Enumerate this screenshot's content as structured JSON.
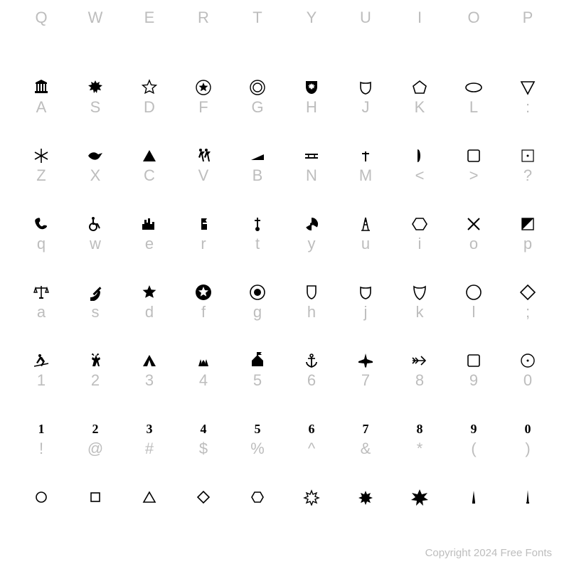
{
  "copyright": "Copyright 2024 Free Fonts",
  "colors": {
    "label": "#bdbdbd",
    "glyph": "#000000",
    "background": "#ffffff"
  },
  "fontsize": {
    "label": 22,
    "glyph": 22,
    "copyright": 15
  },
  "rows": [
    {
      "top_labels": [
        "Q",
        "W",
        "E",
        "R",
        "T",
        "Y",
        "U",
        "I",
        "O",
        "P"
      ],
      "glyph_row": null,
      "bottom_labels": null
    },
    {
      "top_labels": null,
      "glyphs": [
        "building",
        "maple-leaf",
        "star-outline",
        "star-circle",
        "double-circle",
        "shield-leaf",
        "badge",
        "pentagon",
        "ellipse",
        "triangle-down"
      ],
      "bottom_labels": [
        "A",
        "S",
        "D",
        "F",
        "G",
        "H",
        "J",
        "K",
        "L",
        ":"
      ]
    },
    {
      "top_labels": null,
      "glyphs": [
        "snowflake",
        "bird",
        "triangle-up-solid",
        "walkers",
        "wedge",
        "biplane",
        "tower-cross",
        "bracket-right",
        "square-outline",
        "square-dot"
      ],
      "bottom_labels": [
        "Z",
        "X",
        "C",
        "V",
        "B",
        "N",
        "M",
        "<",
        ">",
        "?"
      ]
    },
    {
      "top_labels": null,
      "glyphs": [
        "phone",
        "wheelchair",
        "skyline",
        "flag-block",
        "cross-stand",
        "radiation",
        "oil-derrick",
        "hexagon-outline",
        "crossed-sticks",
        "square-half"
      ],
      "bottom_labels": [
        "q",
        "w",
        "e",
        "r",
        "t",
        "y",
        "u",
        "i",
        "o",
        "p"
      ]
    },
    {
      "top_labels": null,
      "glyphs": [
        "scales",
        "hammer-sickle",
        "star-solid",
        "star-in-circle-solid",
        "record",
        "shield-outline",
        "badge-outline",
        "interstate-outline",
        "circle-outline",
        "diamond-outline"
      ],
      "bottom_labels": [
        "a",
        "s",
        "d",
        "f",
        "g",
        "h",
        "j",
        "k",
        "l",
        ";"
      ]
    },
    {
      "top_labels": null,
      "glyphs": [
        "skier",
        "deer",
        "tent",
        "trees-house",
        "flag-house",
        "anchor",
        "jet",
        "arrow-feather",
        "square-outline",
        "circle-dot"
      ],
      "bottom_labels": [
        "1",
        "2",
        "3",
        "4",
        "5",
        "6",
        "7",
        "8",
        "9",
        "0"
      ]
    },
    {
      "top_labels": null,
      "glyphs": [
        "num-1",
        "num-2",
        "num-3",
        "num-4",
        "num-5",
        "num-6",
        "num-7",
        "num-8",
        "num-9",
        "num-0"
      ],
      "bottom_labels": [
        "!",
        "@",
        "#",
        "$",
        "%",
        "^",
        "&",
        "*",
        "(",
        ")"
      ]
    },
    {
      "top_labels": null,
      "glyphs": [
        "small-circle",
        "small-square",
        "small-triangle",
        "small-diamond",
        "small-hexagon",
        "burst-outline",
        "burst-solid",
        "burst-big",
        "spike-1",
        "spike-2"
      ],
      "bottom_labels": [
        "",
        "",
        "",
        "",
        "",
        "",
        "",
        "",
        "",
        ""
      ]
    }
  ],
  "numeral_text": {
    "num-1": "1",
    "num-2": "2",
    "num-3": "3",
    "num-4": "4",
    "num-5": "5",
    "num-6": "6",
    "num-7": "7",
    "num-8": "8",
    "num-9": "9",
    "num-0": "0"
  }
}
